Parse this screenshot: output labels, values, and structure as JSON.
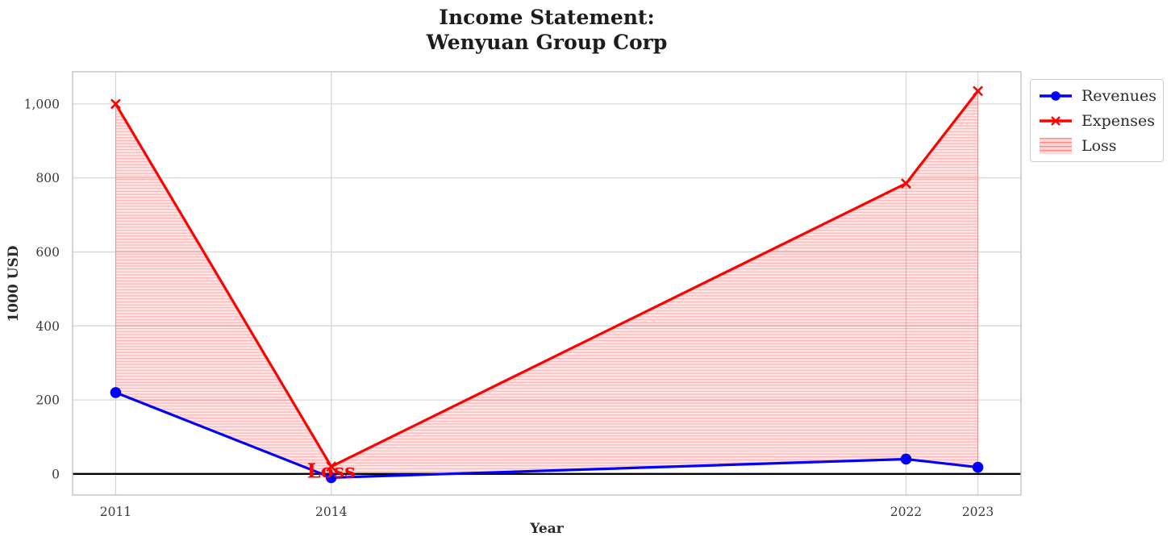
{
  "title": {
    "line1": "Income Statement:",
    "line2": "Wenyuan Group Corp"
  },
  "chart_data": {
    "type": "line",
    "x": [
      2011,
      2014,
      2022,
      2023
    ],
    "series": [
      {
        "name": "Revenues",
        "values": [
          220,
          -10,
          40,
          18
        ],
        "color": "#0000ff",
        "marker": "circle"
      },
      {
        "name": "Expenses",
        "values": [
          1000,
          20,
          785,
          1035
        ],
        "color": "#ff0000",
        "marker": "x"
      }
    ],
    "loss_fill": {
      "label": "Loss",
      "color": "#ff0000",
      "hatch": "horizontal-lines",
      "between": [
        "Expenses",
        "Revenues"
      ]
    },
    "annotation": {
      "text": "Loss",
      "x": 2014,
      "y": 8,
      "color": "#ff0000"
    },
    "xlabel": "Year",
    "ylabel": "1000 USD",
    "xlim": [
      2010.4,
      2023.6
    ],
    "ylim": [
      -57,
      1087
    ],
    "xticks": {
      "values": [
        2011,
        2014,
        2022,
        2023
      ],
      "labels": [
        "2011",
        "2014",
        "2022",
        "2023"
      ]
    },
    "yticks": {
      "values": [
        0,
        200,
        400,
        600,
        800,
        1000
      ],
      "labels": [
        "0",
        "200",
        "400",
        "600",
        "800",
        "1,000"
      ]
    },
    "baseline": {
      "y": 0,
      "color": "#000000"
    },
    "grid": true,
    "legend": {
      "position": "upper-right-outside"
    }
  },
  "styles": {
    "grid_color": "#d4d4d4",
    "spine_color": "#c2c2c2",
    "tick_color": "#3a3a3a"
  }
}
